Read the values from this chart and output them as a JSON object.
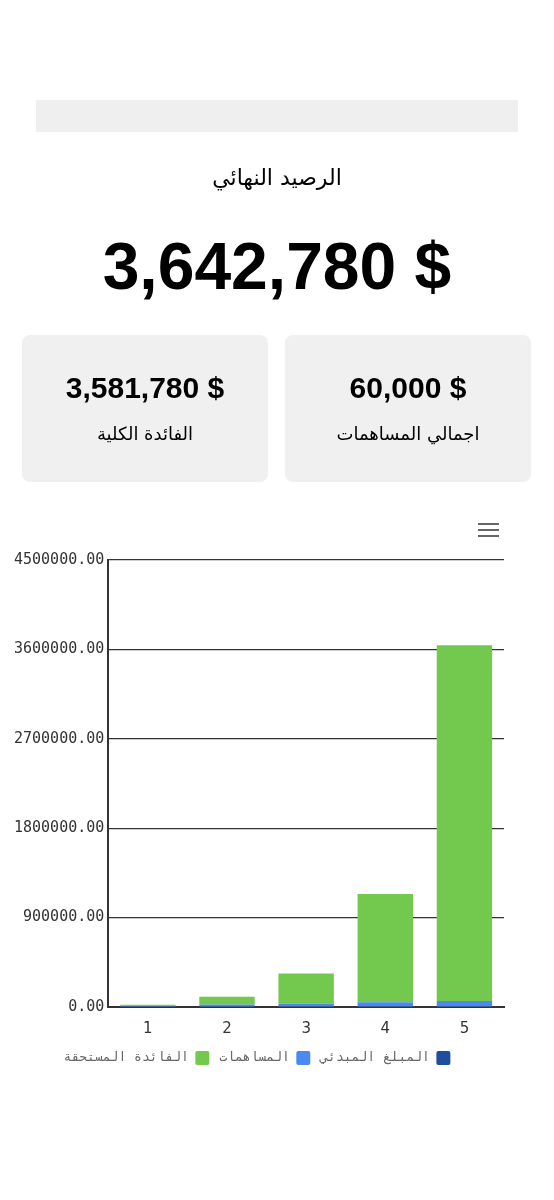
{
  "chart_data": [
    {
      "type": "other",
      "title": "الرصيد النهائي",
      "annotations": [
        "3,642,780 $",
        "3,581,780 $",
        "الفائدة الكلية",
        "60,000 $",
        "اجمالي المساهمات"
      ]
    },
    {
      "type": "bar",
      "stacked": true,
      "categories": [
        "1",
        "2",
        "3",
        "4",
        "5"
      ],
      "series": [
        {
          "name": "المبلغ المبدئي",
          "color": "#1f4e9c",
          "values": [
            0,
            0,
            0,
            0,
            0
          ]
        },
        {
          "name": "المساهمات",
          "color": "#4a8af0",
          "values": [
            12000,
            24000,
            36000,
            48000,
            60000
          ]
        },
        {
          "name": "الفائدة المستحقة",
          "color": "#72c94e",
          "values": [
            10000,
            80000,
            300000,
            1090000,
            3581780
          ]
        }
      ],
      "ylim": [
        0,
        4500000
      ],
      "yticks": [
        {
          "value": 0,
          "label": "0.00"
        },
        {
          "value": 900000,
          "label": "900000.00"
        },
        {
          "value": 1800000,
          "label": "1800000.00"
        },
        {
          "value": 2700000,
          "label": "2700000.00"
        },
        {
          "value": 3600000,
          "label": "3600000.00"
        },
        {
          "value": 4500000,
          "label": "4500000.00"
        }
      ],
      "grid": "y",
      "legend": "bottom"
    }
  ]
}
